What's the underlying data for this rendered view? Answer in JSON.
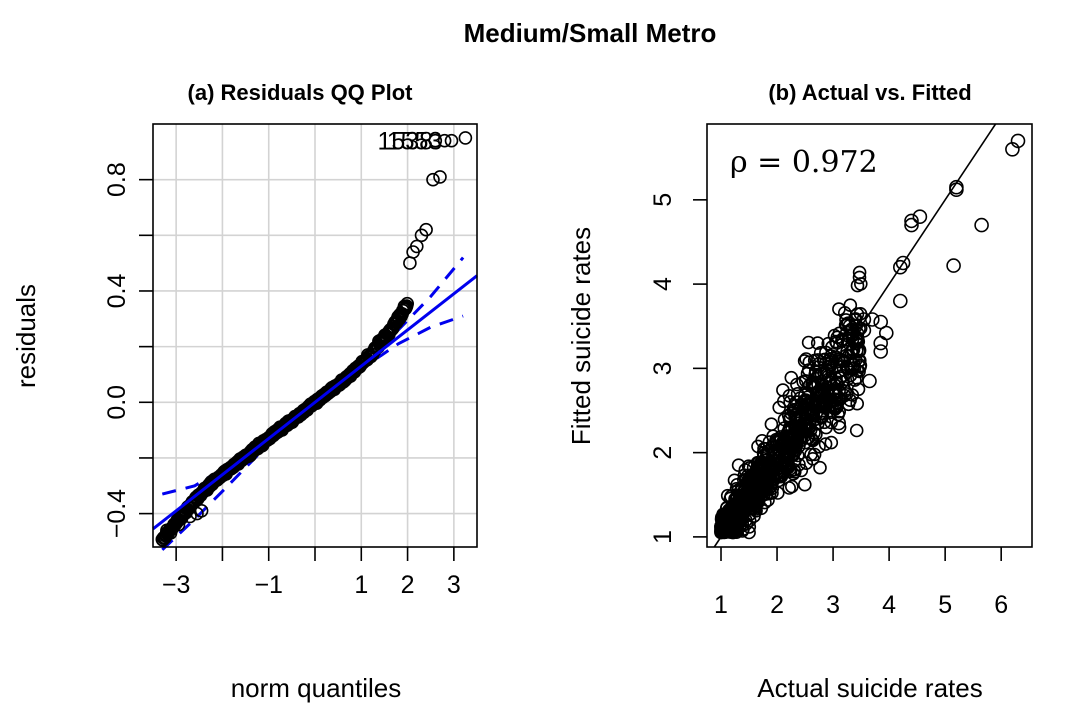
{
  "figure": {
    "title": "Medium/Small Metro"
  },
  "chart_data": [
    {
      "type": "scatter",
      "subtype": "qq",
      "title": "(a) Residuals QQ Plot",
      "xlabel": "norm quantiles",
      "ylabel": "residuals",
      "xlim": [
        -3.5,
        3.5
      ],
      "ylim": [
        -0.52,
        1.0
      ],
      "grid": true,
      "x_ticks": [
        -3,
        -2,
        -1,
        0,
        1,
        2,
        3
      ],
      "x_tick_labels": [
        "−3",
        "",
        "−1",
        "",
        "1",
        "2",
        "3"
      ],
      "y_ticks": [
        -0.4,
        -0.2,
        0.0,
        0.2,
        0.4,
        0.6,
        0.8
      ],
      "y_tick_labels": [
        "−0.4",
        "",
        "0.0",
        "",
        "0.4",
        "",
        "0.8"
      ],
      "reference_line": {
        "color": "#0000ee",
        "intercept": 0.0,
        "slope": 0.13,
        "x_range": [
          -3.5,
          3.5
        ]
      },
      "confidence_band": {
        "color": "#0000ee",
        "upper": [
          [
            -3.3,
            -0.33
          ],
          [
            -2.6,
            -0.3
          ],
          [
            -2,
            -0.24
          ],
          [
            -1,
            -0.12
          ],
          [
            0,
            0.0
          ],
          [
            1,
            0.14
          ],
          [
            1.8,
            0.26
          ],
          [
            2.5,
            0.38
          ],
          [
            3.2,
            0.52
          ]
        ],
        "lower": [
          [
            -3.3,
            -0.53
          ],
          [
            -2.6,
            -0.42
          ],
          [
            -2,
            -0.32
          ],
          [
            -1,
            -0.15
          ],
          [
            0,
            -0.01
          ],
          [
            1,
            0.12
          ],
          [
            1.8,
            0.21
          ],
          [
            2.5,
            0.27
          ],
          [
            3.2,
            0.31
          ]
        ]
      },
      "point_labels": [
        {
          "x": 1.95,
          "y": 0.94,
          "text": "1538"
        },
        {
          "x": 2.15,
          "y": 0.94,
          "text": "1553"
        }
      ],
      "annotation_text": "15538"
    },
    {
      "type": "scatter",
      "title": "(b) Actual vs. Fitted",
      "xlabel": "Actual suicide rates",
      "ylabel": "Fitted suicide rates",
      "xlim": [
        0.75,
        6.55
      ],
      "ylim": [
        0.88,
        5.9
      ],
      "grid": false,
      "x_ticks": [
        1,
        2,
        3,
        4,
        5,
        6
      ],
      "x_tick_labels": [
        "1",
        "2",
        "3",
        "4",
        "5",
        "6"
      ],
      "y_ticks": [
        1,
        2,
        3,
        4,
        5
      ],
      "y_tick_labels": [
        "1",
        "2",
        "3",
        "4",
        "5"
      ],
      "reference_line": {
        "color": "#000000",
        "intercept": 0.0,
        "slope": 1.0
      },
      "correlation": {
        "label": "ρ = 0.972",
        "value": 0.972
      },
      "outliers": [
        [
          6.3,
          5.7
        ],
        [
          6.2,
          5.6
        ],
        [
          5.2,
          5.15
        ],
        [
          5.2,
          5.12
        ],
        [
          4.55,
          4.8
        ],
        [
          4.4,
          4.75
        ],
        [
          4.4,
          4.7
        ],
        [
          5.65,
          4.7
        ],
        [
          4.25,
          4.25
        ],
        [
          4.2,
          4.2
        ],
        [
          5.15,
          4.22
        ],
        [
          4.2,
          3.8
        ],
        [
          3.7,
          3.58
        ],
        [
          3.55,
          3.58
        ],
        [
          3.85,
          3.55
        ],
        [
          3.95,
          3.42
        ],
        [
          3.55,
          3.45
        ],
        [
          3.4,
          3.3
        ],
        [
          3.85,
          3.3
        ],
        [
          3.85,
          3.2
        ],
        [
          3.65,
          2.85
        ],
        [
          3.1,
          2.35
        ],
        [
          2.85,
          3.1
        ],
        [
          3.3,
          3.5
        ],
        [
          3.45,
          3.2
        ]
      ],
      "cluster_trend": {
        "x_range": [
          1.0,
          3.5
        ],
        "slope": 0.92,
        "intercept": 0.1,
        "spread": 0.22,
        "n_points": 900
      }
    }
  ]
}
